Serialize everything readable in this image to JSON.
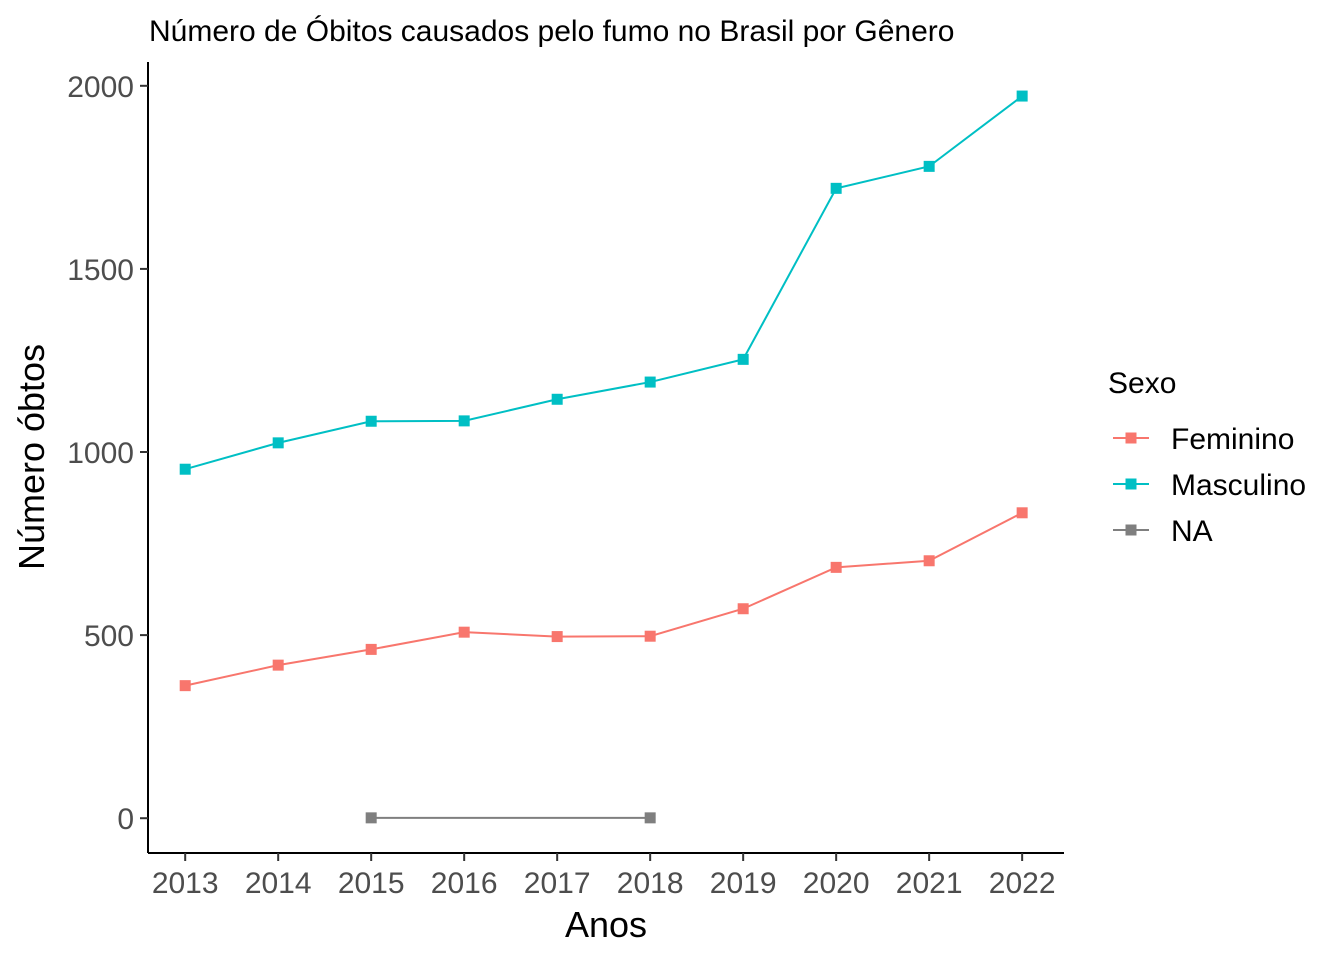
{
  "chart_data": {
    "type": "line",
    "title": "Número de Óbitos causados pelo fumo no Brasil por Gênero",
    "xlabel": "Anos",
    "ylabel": "Número óbtos",
    "x": [
      2013,
      2014,
      2015,
      2016,
      2017,
      2018,
      2019,
      2020,
      2021,
      2022
    ],
    "x_tick_labels": [
      "2013",
      "2014",
      "2015",
      "2016",
      "2017",
      "2018",
      "2019",
      "2020",
      "2021",
      "2022"
    ],
    "y_ticks": [
      0,
      500,
      1000,
      1500,
      2000
    ],
    "y_tick_labels": [
      "0",
      "500",
      "1000",
      "1500",
      "2000"
    ],
    "xlim": [
      2012.6,
      2022.45
    ],
    "ylim": [
      -95,
      2065
    ],
    "grid": false,
    "legend": {
      "title": "Sexo",
      "position": "right"
    },
    "series": [
      {
        "name": "Feminino",
        "color": "#F8766D",
        "marker": "square",
        "x": [
          2013,
          2014,
          2015,
          2016,
          2017,
          2018,
          2019,
          2020,
          2021,
          2022
        ],
        "values": [
          362,
          418,
          461,
          508,
          496,
          497,
          572,
          685,
          703,
          834
        ]
      },
      {
        "name": "Masculino",
        "color": "#00BFC4",
        "marker": "square",
        "x": [
          2013,
          2014,
          2015,
          2016,
          2017,
          2018,
          2019,
          2020,
          2021,
          2022
        ],
        "values": [
          953,
          1025,
          1084,
          1085,
          1144,
          1191,
          1253,
          1720,
          1780,
          1972
        ]
      },
      {
        "name": "NA",
        "color": "#7F7F7F",
        "marker": "square",
        "x": [
          2015,
          2018
        ],
        "values": [
          1,
          1
        ]
      }
    ]
  }
}
